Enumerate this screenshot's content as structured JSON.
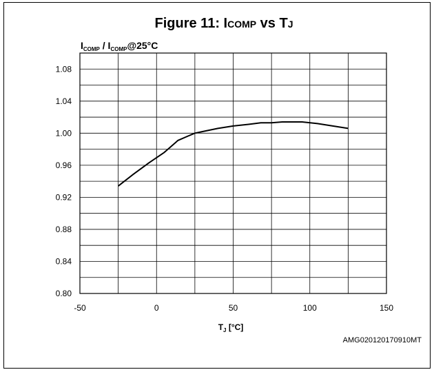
{
  "chart_data": {
    "type": "line",
    "title_parts": [
      "Figure 11: I",
      "COMP",
      " vs T",
      "J"
    ],
    "ylabel_parts": [
      "I",
      "COMP",
      " / I",
      "COMP",
      "@25°C"
    ],
    "xlabel_parts": [
      "T",
      "J",
      " [°C]"
    ],
    "xlim": [
      -50,
      150
    ],
    "ylim": [
      0.8,
      1.1
    ],
    "x_ticks": [
      -50,
      0,
      50,
      100,
      150
    ],
    "x_tick_labels": [
      "-50",
      "0",
      "50",
      "100",
      "150"
    ],
    "y_ticks": [
      0.8,
      0.84,
      0.88,
      0.92,
      0.96,
      1.0,
      1.04,
      1.08
    ],
    "y_tick_labels": [
      "0.80",
      "0.84",
      "0.88",
      "0.92",
      "0.96",
      "1.00",
      "1.04",
      "1.08"
    ],
    "grid": true,
    "series": [
      {
        "color": "#000000",
        "x": [
          -25,
          -15,
          -5,
          5,
          14,
          20,
          25,
          30,
          40,
          50,
          60,
          68,
          75,
          82,
          90,
          95,
          105,
          115,
          125
        ],
        "y": [
          0.934,
          0.949,
          0.963,
          0.976,
          0.991,
          0.996,
          1.0,
          1.002,
          1.006,
          1.009,
          1.011,
          1.013,
          1.013,
          1.014,
          1.014,
          1.014,
          1.012,
          1.009,
          1.006
        ]
      }
    ],
    "annotation": "AMG020120170910MT"
  }
}
